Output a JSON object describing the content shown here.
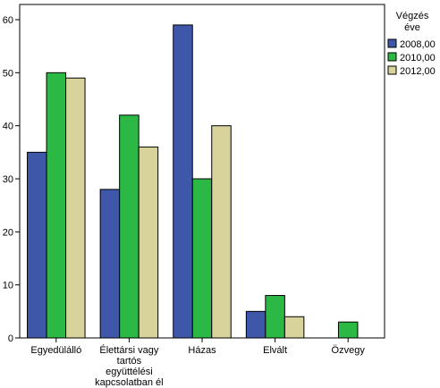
{
  "chart_data": {
    "type": "bar",
    "title": "",
    "xlabel": "",
    "ylabel": "",
    "ylim": [
      0,
      60
    ],
    "yticks": [
      0,
      10,
      20,
      30,
      40,
      50,
      60
    ],
    "grid": false,
    "legend_placement": "top-right",
    "legend_title": "Végzés éve",
    "legend_title_lines": [
      "Végzés",
      "éve"
    ],
    "categories": [
      "Egyedülálló",
      "Élettársi vagy tartós együttélési kapcsolatban él",
      "Házas",
      "Elvált",
      "Özvegy"
    ],
    "category_label_lines": [
      [
        "Egyedülálló"
      ],
      [
        "Élettársi vagy",
        "tartós",
        "együttélési",
        "kapcsolatban él"
      ],
      [
        "Házas"
      ],
      [
        "Elvált"
      ],
      [
        "Özvegy"
      ]
    ],
    "series": [
      {
        "name": "2008,00",
        "color": "#3f57a8",
        "values": [
          35,
          28,
          59,
          5,
          0
        ]
      },
      {
        "name": "2010,00",
        "color": "#2bb845",
        "values": [
          50,
          42,
          30,
          8,
          3
        ]
      },
      {
        "name": "2012,00",
        "color": "#d8d29b",
        "values": [
          49,
          36,
          40,
          4,
          0
        ]
      }
    ]
  }
}
